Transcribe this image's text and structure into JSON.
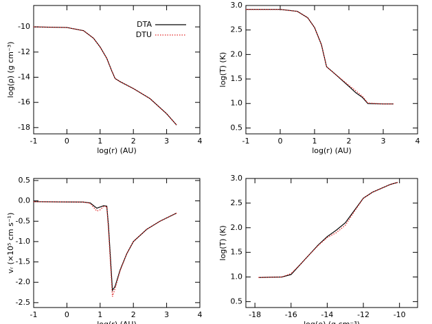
{
  "chart_data": [
    {
      "type": "line",
      "x_label": "log(r) (AU)",
      "y_label": "log(ρ) (g cm⁻³)",
      "x": [
        -1,
        0,
        0.5,
        0.8,
        1.0,
        1.2,
        1.35,
        1.45,
        1.6,
        2.0,
        2.5,
        3.0,
        3.3
      ],
      "series": [
        {
          "name": "DTA",
          "color": "#000000",
          "style": "solid",
          "values": [
            -10.0,
            -10.05,
            -10.3,
            -10.9,
            -11.6,
            -12.5,
            -13.5,
            -14.1,
            -14.35,
            -14.9,
            -15.7,
            -16.9,
            -17.8
          ]
        },
        {
          "name": "DTU",
          "color": "#e02020",
          "style": "dotted",
          "values": [
            -10.0,
            -10.05,
            -10.3,
            -10.9,
            -11.6,
            -12.5,
            -13.5,
            -14.1,
            -14.35,
            -14.9,
            -15.7,
            -16.9,
            -17.8
          ]
        }
      ],
      "xlim": [
        -1,
        4
      ],
      "xticks": [
        -1,
        0,
        1,
        2,
        3,
        4
      ],
      "ylim": [
        -18.5,
        -8.3
      ],
      "yticks": [
        -18,
        -16,
        -14,
        -12,
        -10
      ],
      "legend": "upper right"
    },
    {
      "type": "line",
      "x_label": "log(r) (AU)",
      "y_label": "log(T) (K)",
      "x": [
        -1,
        0,
        0.5,
        0.8,
        1.0,
        1.2,
        1.35,
        1.6,
        2.0,
        2.2,
        2.4,
        2.55,
        3.0,
        3.3
      ],
      "series": [
        {
          "name": "DTA",
          "color": "#000000",
          "style": "solid",
          "values": [
            2.92,
            2.92,
            2.88,
            2.75,
            2.55,
            2.2,
            1.75,
            1.6,
            1.35,
            1.22,
            1.12,
            1.0,
            0.99,
            0.99
          ]
        },
        {
          "name": "DTU",
          "color": "#e02020",
          "style": "dotted",
          "values": [
            2.92,
            2.92,
            2.88,
            2.75,
            2.55,
            2.2,
            1.75,
            1.6,
            1.37,
            1.26,
            1.14,
            1.01,
            0.99,
            0.99
          ]
        }
      ],
      "xlim": [
        -1,
        4
      ],
      "xticks": [
        -1,
        0,
        1,
        2,
        3,
        4
      ],
      "ylim": [
        0.38,
        3.0
      ],
      "yticks": [
        0.5,
        {
          "value": 1,
          "label": "1.0"
        },
        1.5,
        {
          "value": 2,
          "label": "2.0"
        },
        2.5,
        {
          "value": 3,
          "label": "3.0"
        }
      ]
    },
    {
      "type": "line",
      "x_label": "log(r) (AU)",
      "y_label": "vᵣ (×10⁵ cm s⁻¹)",
      "x": [
        -1,
        0.5,
        0.7,
        0.9,
        1.0,
        1.1,
        1.2,
        1.25,
        1.37,
        1.45,
        1.6,
        1.8,
        2.0,
        2.4,
        2.8,
        3.3
      ],
      "series": [
        {
          "name": "DTA",
          "color": "#000000",
          "style": "solid",
          "values": [
            -0.02,
            -0.03,
            -0.05,
            -0.18,
            -0.15,
            -0.12,
            -0.13,
            -0.6,
            -2.2,
            -2.1,
            -1.7,
            -1.3,
            -1.0,
            -0.7,
            -0.5,
            -0.3
          ]
        },
        {
          "name": "DTU",
          "color": "#e02020",
          "style": "dotted",
          "values": [
            -0.02,
            -0.03,
            -0.06,
            -0.25,
            -0.22,
            -0.14,
            -0.14,
            -0.7,
            -2.35,
            -2.15,
            -1.72,
            -1.3,
            -1.0,
            -0.7,
            -0.5,
            -0.3
          ]
        }
      ],
      "xlim": [
        -1,
        4
      ],
      "xticks": [
        -1,
        0,
        1,
        2,
        3,
        4
      ],
      "ylim": [
        -2.62,
        0.55
      ],
      "yticks": [
        -2.5,
        {
          "value": -2,
          "label": "-2.0"
        },
        -1.5,
        {
          "value": -1,
          "label": "-1.0"
        },
        -0.5,
        {
          "value": 0,
          "label": "0.0"
        },
        0.5
      ]
    },
    {
      "type": "line",
      "x_label": "log(ρ) (g cm⁻³)",
      "y_label": "log(T) (K)",
      "x": [
        -17.8,
        -16.5,
        -16.0,
        -15.5,
        -15.0,
        -14.5,
        -14.0,
        -13.5,
        -13.0,
        -12.5,
        -12.0,
        -11.5,
        -11.0,
        -10.5,
        -10.1
      ],
      "series": [
        {
          "name": "DTA",
          "color": "#000000",
          "style": "solid",
          "values": [
            0.99,
            1.0,
            1.05,
            1.25,
            1.45,
            1.65,
            1.82,
            1.95,
            2.1,
            2.35,
            2.6,
            2.72,
            2.8,
            2.88,
            2.92
          ]
        },
        {
          "name": "DTU",
          "color": "#e02020",
          "style": "dotted",
          "values": [
            0.99,
            1.0,
            1.07,
            1.25,
            1.45,
            1.64,
            1.8,
            1.9,
            2.05,
            2.33,
            2.6,
            2.72,
            2.8,
            2.88,
            2.92
          ]
        }
      ],
      "xlim": [
        -18.5,
        -9.0
      ],
      "xticks": [
        -18,
        -16,
        -14,
        -12,
        -10
      ],
      "ylim": [
        0.38,
        3.0
      ],
      "yticks": [
        0.5,
        {
          "value": 1,
          "label": "1.0"
        },
        1.5,
        {
          "value": 2,
          "label": "2.0"
        },
        2.5,
        {
          "value": 3,
          "label": "3.0"
        }
      ]
    }
  ]
}
